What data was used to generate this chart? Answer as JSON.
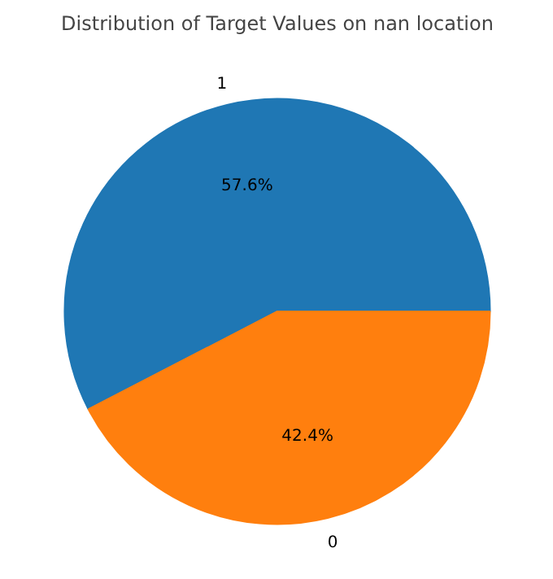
{
  "chart_data": {
    "type": "pie",
    "title": "Distribution of Target Values on nan location",
    "categories": [
      "1",
      "0"
    ],
    "values": [
      57.6,
      42.4
    ],
    "colors": [
      "#1f77b4",
      "#ff7f0e"
    ],
    "value_labels": [
      "57.6%",
      "42.4%"
    ]
  }
}
